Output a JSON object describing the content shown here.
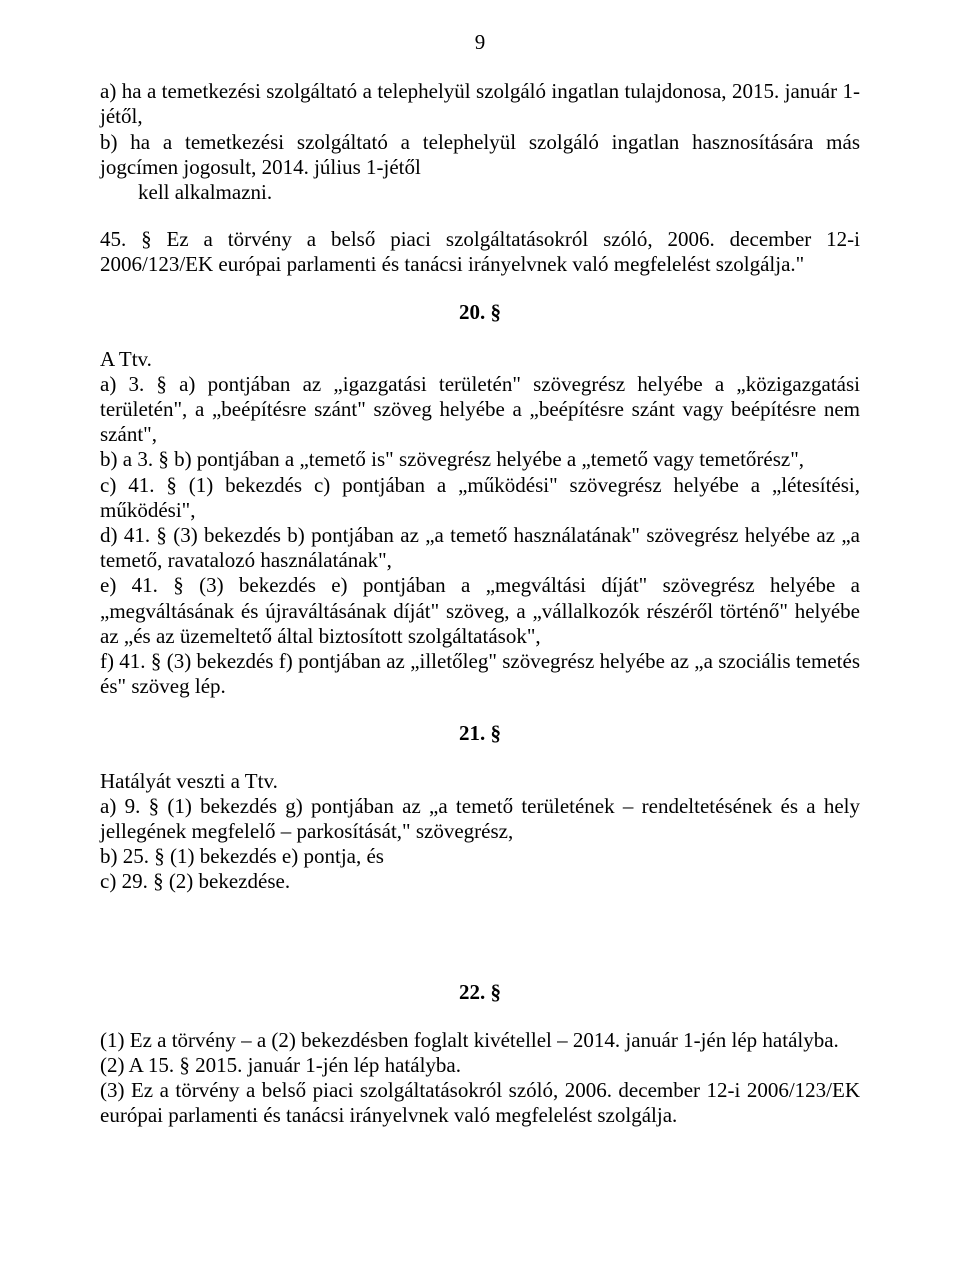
{
  "pageNumber": "9",
  "p1_a": "a) ha a temetkezési szolgáltató a telephelyül szolgáló ingatlan tulajdonosa, 2015. január 1-jétől,",
  "p1_b": "b) ha a temetkezési szolgáltató a telephelyül szolgáló ingatlan hasznosítására más jogcímen jogosult, 2014. július 1-jétől",
  "p1_indent": "kell alkalmazni.",
  "p2": "45. § Ez a törvény a belső piaci szolgáltatásokról szóló, 2006. december 12-i 2006/123/EK európai parlamenti és tanácsi irányelvnek való megfelelést szolgálja.\"",
  "s20": "20. §",
  "p3_intro": "A Ttv.",
  "p3_a": "a) 3. § a) pontjában az „igazgatási területén\" szövegrész helyébe a „közigazgatási területén\", a „beépítésre szánt\" szöveg helyébe a „beépítésre szánt vagy beépítésre nem szánt\",",
  "p3_b": "b) a 3. § b) pontjában a „temető is\" szövegrész helyébe a „temető vagy temetőrész\",",
  "p3_c": "c) 41. § (1) bekezdés c) pontjában a „működési\" szövegrész helyébe a „létesítési, működési\",",
  "p3_d": "d) 41. § (3) bekezdés b) pontjában az „a temető használatának\" szövegrész helyébe az „a temető, ravatalozó használatának\",",
  "p3_e": "e) 41. § (3) bekezdés e) pontjában a „megváltási díját\" szövegrész helyébe a „megváltásának és újraváltásának díját\" szöveg, a „vállalkozók részéről történő\" helyébe az „és az üzemeltető által biztosított szolgáltatások\",",
  "p3_f": "f) 41. § (3) bekezdés f) pontjában az „illetőleg\" szövegrész helyébe az „a szociális temetés és\" szöveg lép.",
  "s21": "21. §",
  "p4_intro": "Hatályát veszti a Ttv.",
  "p4_a": "a)  9. § (1) bekezdés g) pontjában az „a temető területének – rendeltetésének és a hely jellegének megfelelő – parkosítását,\" szövegrész,",
  "p4_b": "b)  25. § (1) bekezdés e) pontja, és",
  "p4_c": "c)  29. § (2) bekezdése.",
  "s22": "22. §",
  "p5_1": "(1)  Ez a törvény – a (2) bekezdésben foglalt kivétellel – 2014. január 1-jén lép hatályba.",
  "p5_2": "(2)  A 15. § 2015. január 1-jén lép hatályba.",
  "p5_3": "(3)  Ez a törvény a belső piaci szolgáltatásokról szóló, 2006. december 12-i 2006/123/EK európai parlamenti és tanácsi irányelvnek való megfelelést szolgálja."
}
